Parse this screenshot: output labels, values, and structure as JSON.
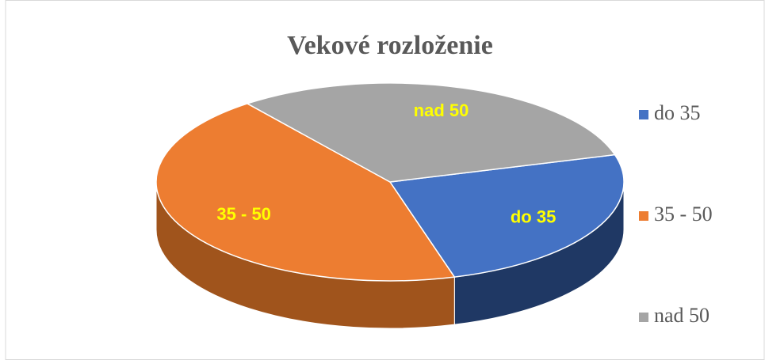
{
  "chart_data": {
    "type": "pie",
    "title": "Vekové rozloženie",
    "categories": [
      "do  35",
      "35 - 50",
      "nad 50"
    ],
    "values": [
      25,
      44,
      31
    ],
    "colors": [
      "#4472c4",
      "#ed7d31",
      "#a5a5a5"
    ],
    "side_colors": [
      "#1f3864",
      "#a0541c"
    ],
    "legend": "right"
  }
}
